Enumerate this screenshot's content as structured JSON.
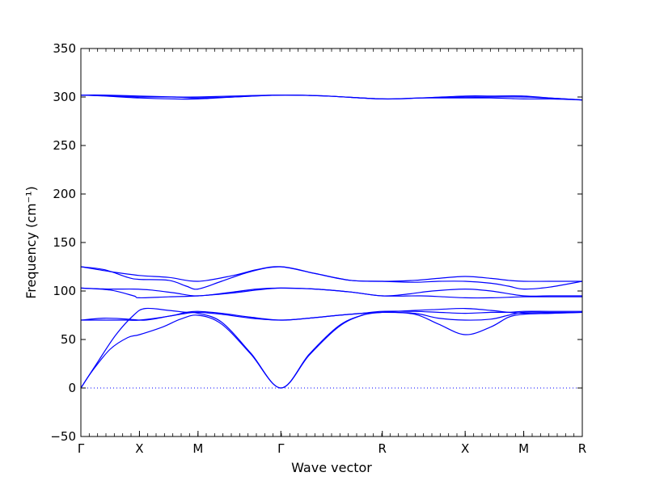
{
  "chart_data": {
    "type": "line",
    "xlabel": "Wave vector",
    "ylabel": "Frequency (cm⁻¹)",
    "ylim": [
      -50,
      350
    ],
    "yticks": [
      -50,
      0,
      50,
      100,
      150,
      200,
      250,
      300,
      350
    ],
    "grid": false,
    "line_color": "#0000ff",
    "zero_line": {
      "y": 0,
      "style": "dotted",
      "color": "#0000ff"
    },
    "path_ticks": [
      {
        "label": "Γ",
        "x": 0.0
      },
      {
        "label": "X",
        "x": 0.5
      },
      {
        "label": "M",
        "x": 1.0
      },
      {
        "label": "Γ",
        "x": 1.707
      },
      {
        "label": "R",
        "x": 2.573
      },
      {
        "label": "X",
        "x": 3.28
      },
      {
        "label": "M",
        "x": 3.78
      },
      {
        "label": "R",
        "x": 4.28
      }
    ],
    "series": [
      {
        "x": [
          0,
          0.1,
          0.25,
          0.4,
          0.5,
          0.7,
          0.85,
          1.0,
          1.2,
          1.45,
          1.707,
          1.95,
          2.2,
          2.4,
          2.573,
          2.85,
          3.05,
          3.28,
          3.5,
          3.65,
          3.78,
          4.0,
          4.28
        ],
        "y": [
          0,
          18,
          40,
          52,
          55,
          63,
          71,
          75,
          66,
          35,
          0,
          34,
          63,
          75,
          78,
          76,
          66,
          55,
          63,
          73,
          76,
          77,
          78
        ]
      },
      {
        "x": [
          0,
          0.15,
          0.3,
          0.45,
          0.55,
          0.75,
          0.9,
          1.0,
          1.2,
          1.45,
          1.707,
          1.95,
          2.2,
          2.4,
          2.573,
          2.85,
          3.05,
          3.28,
          3.5,
          3.65,
          3.78,
          4.0,
          4.28
        ],
        "y": [
          0,
          28,
          55,
          75,
          82,
          80,
          78,
          77,
          68,
          36,
          0,
          35,
          64,
          75,
          78,
          80,
          81,
          82,
          80,
          78,
          77,
          77,
          78
        ]
      },
      {
        "x": [
          0,
          0.2,
          0.4,
          0.55,
          0.75,
          0.9,
          1.0,
          1.2,
          1.45,
          1.707,
          1.95,
          2.2,
          2.4,
          2.573,
          2.85,
          3.05,
          3.28,
          3.5,
          3.65,
          3.78,
          4.0,
          4.28
        ],
        "y": [
          70,
          72,
          71,
          70,
          74,
          77,
          78,
          76,
          72,
          70,
          72,
          75,
          77,
          78,
          77,
          72,
          70,
          71,
          75,
          78,
          78,
          78
        ]
      },
      {
        "x": [
          0,
          0.2,
          0.4,
          0.5,
          0.75,
          0.9,
          1.0,
          1.2,
          1.45,
          1.707,
          1.95,
          2.2,
          2.4,
          2.573,
          2.85,
          3.05,
          3.28,
          3.5,
          3.65,
          3.78,
          4.0,
          4.28
        ],
        "y": [
          70,
          70,
          70,
          70,
          74,
          78,
          79,
          77,
          73,
          70,
          72,
          75,
          77,
          79,
          79,
          78,
          77,
          78,
          78,
          79,
          79,
          79
        ]
      },
      {
        "x": [
          0,
          0.25,
          0.45,
          0.5,
          0.75,
          1.0,
          1.3,
          1.5,
          1.707,
          2.0,
          2.3,
          2.573,
          2.9,
          3.1,
          3.28,
          3.5,
          3.78,
          4.0,
          4.28
        ],
        "y": [
          103,
          101,
          95,
          93,
          94,
          95,
          98,
          101,
          103,
          102,
          99,
          95,
          95,
          94,
          93,
          93,
          94,
          94,
          94
        ]
      },
      {
        "x": [
          0,
          0.25,
          0.45,
          0.6,
          0.8,
          1.0,
          1.3,
          1.5,
          1.707,
          2.0,
          2.3,
          2.573,
          2.8,
          3.0,
          3.28,
          3.5,
          3.78,
          4.0,
          4.28
        ],
        "y": [
          103,
          102,
          102,
          101,
          98,
          95,
          99,
          102,
          103,
          102,
          99,
          95,
          97,
          100,
          102,
          100,
          95,
          95,
          95
        ]
      },
      {
        "x": [
          0,
          0.2,
          0.4,
          0.5,
          0.75,
          0.9,
          1.0,
          1.2,
          1.45,
          1.707,
          2.0,
          2.3,
          2.573,
          2.85,
          3.05,
          3.28,
          3.5,
          3.65,
          3.78,
          4.0,
          4.28
        ],
        "y": [
          125,
          122,
          114,
          112,
          111,
          105,
          102,
          110,
          120,
          125,
          118,
          111,
          110,
          109,
          110,
          110,
          108,
          105,
          102,
          104,
          110
        ]
      },
      {
        "x": [
          0,
          0.25,
          0.5,
          0.75,
          1.0,
          1.3,
          1.5,
          1.707,
          2.0,
          2.3,
          2.573,
          2.85,
          3.05,
          3.28,
          3.5,
          3.65,
          3.78,
          4.0,
          4.28
        ],
        "y": [
          125,
          120,
          116,
          114,
          110,
          116,
          122,
          125,
          118,
          111,
          110,
          111,
          113,
          115,
          113,
          111,
          110,
          110,
          110
        ]
      },
      {
        "x": [
          0,
          0.2,
          0.5,
          0.8,
          1.0,
          1.3,
          1.707,
          2.1,
          2.573,
          2.9,
          3.28,
          3.5,
          3.78,
          4.0,
          4.28
        ],
        "y": [
          302,
          302,
          301,
          300,
          299,
          300,
          302,
          301,
          298,
          299,
          301,
          301,
          301,
          299,
          297
        ]
      },
      {
        "x": [
          0,
          0.2,
          0.5,
          0.8,
          1.0,
          1.3,
          1.707,
          2.1,
          2.573,
          2.9,
          3.28,
          3.5,
          3.78,
          4.0,
          4.28
        ],
        "y": [
          302,
          301,
          299,
          298,
          298,
          300,
          302,
          301,
          298,
          299,
          299,
          299,
          298,
          298,
          297
        ]
      },
      {
        "x": [
          0,
          0.3,
          0.5,
          0.8,
          1.0,
          1.3,
          1.707,
          2.1,
          2.573,
          2.9,
          3.28,
          3.5,
          3.78,
          4.0,
          4.28
        ],
        "y": [
          302,
          301,
          300,
          300,
          300,
          301,
          302,
          301,
          298,
          299,
          300,
          300,
          300,
          299,
          297
        ]
      }
    ]
  }
}
